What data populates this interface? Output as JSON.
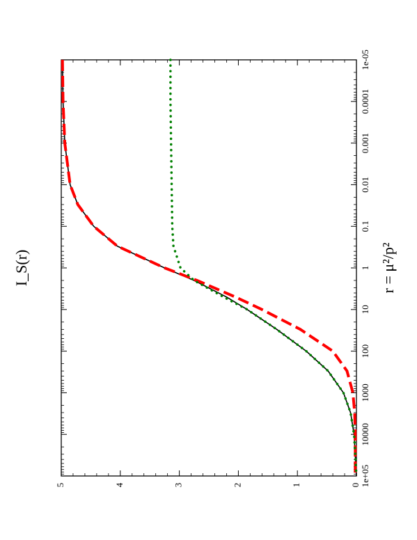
{
  "chart_data": {
    "type": "line",
    "orientation": "rotated-90-clockwise",
    "x_scale": "log",
    "xlim": [
      1e-05,
      100000
    ],
    "ylim": [
      0,
      5
    ],
    "xlabel": "r = μ²/p²",
    "ylabel": "I_S(r)",
    "x_ticks": [
      {
        "value": 1e-05,
        "label": "1e-05"
      },
      {
        "value": 0.0001,
        "label": "0.0001"
      },
      {
        "value": 0.001,
        "label": "0.001"
      },
      {
        "value": 0.01,
        "label": "0.01"
      },
      {
        "value": 0.1,
        "label": "0.1"
      },
      {
        "value": 1,
        "label": "1"
      },
      {
        "value": 10,
        "label": "10"
      },
      {
        "value": 100,
        "label": "100"
      },
      {
        "value": 1000,
        "label": "1000"
      },
      {
        "value": 10000,
        "label": "10000"
      },
      {
        "value": 100000,
        "label": "1e+05"
      }
    ],
    "y_ticks": [
      {
        "value": 0,
        "label": "0"
      },
      {
        "value": 1,
        "label": "1"
      },
      {
        "value": 2,
        "label": "2"
      },
      {
        "value": 3,
        "label": "3"
      },
      {
        "value": 4,
        "label": "4"
      },
      {
        "value": 5,
        "label": "5"
      }
    ],
    "grid": false,
    "legend": "none",
    "series": [
      {
        "style": "solid",
        "color": "#000000",
        "x": [
          1e-05,
          0.0001,
          0.001,
          0.01,
          0.03,
          0.1,
          0.3,
          1,
          2,
          5,
          10,
          30,
          100,
          300,
          1000,
          3000,
          10000,
          100000
        ],
        "y": [
          4.98,
          4.97,
          4.94,
          4.85,
          4.72,
          4.45,
          4.05,
          3.25,
          2.75,
          2.2,
          1.85,
          1.35,
          0.85,
          0.48,
          0.22,
          0.1,
          0.04,
          0.0
        ]
      },
      {
        "style": "dashed",
        "color": "#ff0000",
        "x": [
          1e-05,
          0.0001,
          0.001,
          0.01,
          0.03,
          0.1,
          0.3,
          1,
          2,
          5,
          10,
          30,
          100,
          300,
          1000,
          3000,
          10000,
          100000
        ],
        "y": [
          4.98,
          4.97,
          4.94,
          4.85,
          4.72,
          4.45,
          4.05,
          3.25,
          2.7,
          2.05,
          1.6,
          0.95,
          0.4,
          0.16,
          0.06,
          0.03,
          0.02,
          0.02
        ]
      },
      {
        "style": "dotted",
        "color": "#008000",
        "x": [
          1e-05,
          0.0001,
          0.001,
          0.01,
          0.1,
          0.3,
          1,
          2,
          5,
          10,
          30,
          100,
          300,
          1000,
          3000,
          10000,
          100000
        ],
        "y": [
          3.15,
          3.15,
          3.14,
          3.13,
          3.12,
          3.1,
          2.98,
          2.75,
          2.25,
          1.85,
          1.35,
          0.85,
          0.48,
          0.22,
          0.1,
          0.04,
          0.0
        ]
      }
    ]
  }
}
